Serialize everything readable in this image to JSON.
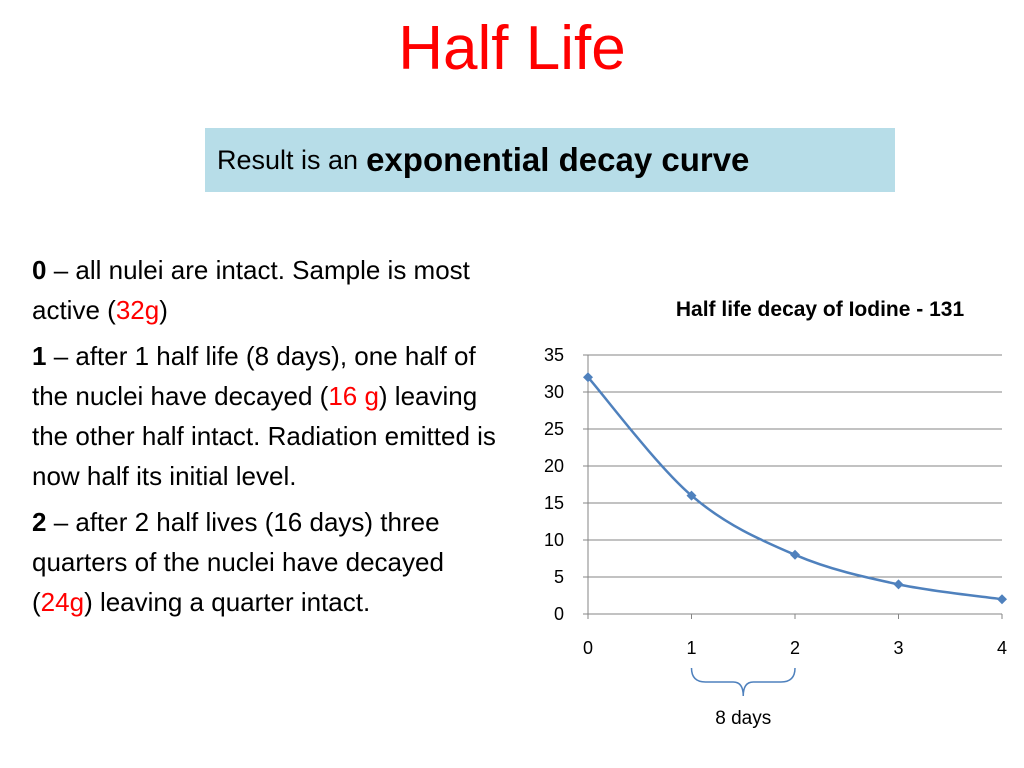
{
  "slide": {
    "title": "Half Life",
    "subtitle_prefix": "Result is an",
    "subtitle_bold": "exponential decay curve"
  },
  "paragraphs": [
    {
      "num": "0",
      "parts": [
        {
          "text": " – all nulei are intact.  Sample is most active (",
          "red": false
        },
        {
          "text": "32g",
          "red": true
        },
        {
          "text": ")",
          "red": false
        }
      ]
    },
    {
      "num": "1",
      "parts": [
        {
          "text": " – after 1 half life (8 days), one half of the nuclei have decayed (",
          "red": false
        },
        {
          "text": "16 g",
          "red": true
        },
        {
          "text": ") leaving the other half intact.  Radiation emitted is now half its initial level.",
          "red": false
        }
      ]
    },
    {
      "num": "2",
      "parts": [
        {
          "text": " – after 2 half lives (16 days) three quarters of the nuclei have decayed (",
          "red": false
        },
        {
          "text": "24g",
          "red": true
        },
        {
          "text": ") leaving a quarter intact.",
          "red": false
        }
      ]
    }
  ],
  "chart_data": {
    "type": "line",
    "title": "Half life decay of Iodine - 131",
    "x": [
      0,
      1,
      2,
      3,
      4
    ],
    "y": [
      32,
      16,
      8,
      4,
      2
    ],
    "xlim": [
      0,
      4
    ],
    "ylim": [
      0,
      35
    ],
    "yticks": [
      0,
      5,
      10,
      15,
      20,
      25,
      30,
      35
    ],
    "xticks": [
      0,
      1,
      2,
      3,
      4
    ],
    "grid": true,
    "line_color": "#4f81bd",
    "annotation": "8 days"
  }
}
